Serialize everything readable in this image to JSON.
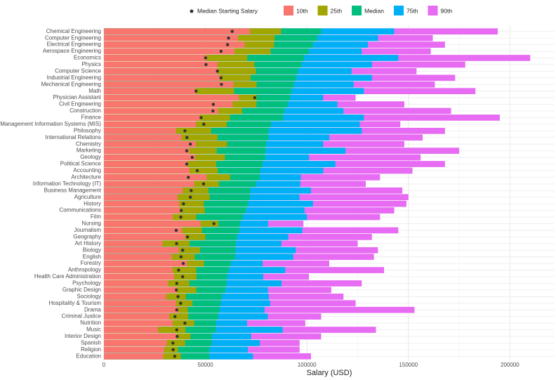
{
  "chart_data": {
    "type": "bar",
    "orientation": "horizontal",
    "xlabel": "Salary (USD)",
    "xlim": [
      0,
      222000
    ],
    "xticks": [
      0,
      50000,
      100000,
      150000,
      200000
    ],
    "xminor": [
      25000,
      75000,
      125000,
      175000
    ],
    "grid": true,
    "legend": "top",
    "categories": [
      "Chemical Engineering",
      "Computer Engineering",
      "Electrical Engineering",
      "Aerospace Engineering",
      "Economics",
      "Physics",
      "Computer Science",
      "Industrial Engineering",
      "Mechanical Engineering",
      "Math",
      "Physician Assistant",
      "Civil Engineering",
      "Construction",
      "Finance",
      "Management Information Systems (MIS)",
      "Philosophy",
      "International Relations",
      "Chemistry",
      "Marketing",
      "Geology",
      "Political Science",
      "Accounting",
      "Architecture",
      "Information Technology (IT)",
      "Business Management",
      "Agriculture",
      "History",
      "Communications",
      "Film",
      "Nursing",
      "Journalism",
      "Geography",
      "Art History",
      "Biology",
      "English",
      "Forestry",
      "Anthropology",
      "Health Care Administration",
      "Psychology",
      "Graphic Design",
      "Sociology",
      "Hospitality & Tourism",
      "Drama",
      "Criminal Justice",
      "Nutrition",
      "Music",
      "Interior Design",
      "Spanish",
      "Religion",
      "Education"
    ],
    "series": [
      {
        "name": "10th",
        "color": "#F8766D",
        "values": [
          71900,
          66100,
          69300,
          64300,
          50600,
          56000,
          56000,
          57100,
          63700,
          45200,
          66400,
          63400,
          56300,
          47200,
          45300,
          35500,
          38200,
          45300,
          42100,
          45000,
          41200,
          42200,
          50600,
          44500,
          38800,
          36300,
          37000,
          37500,
          33900,
          47600,
          38400,
          40000,
          28800,
          36900,
          33400,
          41000,
          33800,
          34600,
          31600,
          36000,
          30700,
          35500,
          36700,
          32200,
          33900,
          26700,
          35700,
          31000,
          29700,
          29300
        ]
      },
      {
        "name": "25th",
        "color": "#A3A500",
        "values": [
          87300,
          84100,
          83800,
          82100,
          70600,
          74200,
          74900,
          72300,
          75200,
          64200,
          75200,
          75100,
          68100,
          62100,
          60500,
          52800,
          56000,
          60700,
          55600,
          59600,
          55300,
          56100,
          62200,
          56700,
          51500,
          52100,
          49200,
          49700,
          45500,
          56400,
          48300,
          50000,
          42200,
          47400,
          44800,
          49300,
          45500,
          45600,
          42100,
          45500,
          40400,
          43600,
          41300,
          41600,
          44500,
          40200,
          42600,
          40000,
          36500,
          37900
        ]
      },
      {
        "name": "Median",
        "color": "#00BF7D",
        "values": [
          107000,
          105000,
          103000,
          101000,
          98600,
          97300,
          95500,
          94700,
          93600,
          92400,
          91700,
          90500,
          88900,
          88300,
          82300,
          81200,
          80900,
          79900,
          79600,
          79500,
          78200,
          77100,
          76800,
          74800,
          72100,
          71900,
          71000,
          70000,
          68500,
          67000,
          66700,
          65500,
          64900,
          64800,
          64700,
          62600,
          61500,
          60600,
          60400,
          59800,
          58200,
          57500,
          56900,
          56300,
          55300,
          55000,
          53200,
          53100,
          52000,
          52000
        ]
      },
      {
        "name": "75th",
        "color": "#00B0F6",
        "values": [
          143000,
          135000,
          130000,
          127000,
          145000,
          132000,
          122000,
          132000,
          123000,
          128000,
          108000,
          115000,
          118000,
          128000,
          126000,
          127000,
          111000,
          108000,
          119000,
          101000,
          114000,
          108000,
          97000,
          96700,
          102000,
          96300,
          103000,
          98800,
          100000,
          80900,
          97700,
          90800,
          87400,
          94500,
          93200,
          78200,
          89300,
          78500,
          87500,
          80800,
          81200,
          81900,
          79100,
          80700,
          70500,
          88000,
          72500,
          76800,
          70900,
          73400
        ]
      },
      {
        "name": "90th",
        "color": "#E76BF3",
        "values": [
          194000,
          162000,
          168000,
          161000,
          210000,
          178000,
          154000,
          173000,
          163000,
          183000,
          124000,
          148000,
          171000,
          195000,
          146000,
          168000,
          157000,
          148000,
          175000,
          156000,
          168000,
          152000,
          136000,
          129000,
          147000,
          150000,
          149000,
          143000,
          136000,
          98300,
          145000,
          132000,
          125000,
          135000,
          133000,
          111000,
          138000,
          101000,
          127000,
          112000,
          118000,
          124000,
          153000,
          107000,
          99200,
          134000,
          107000,
          96400,
          96400,
          102000
        ]
      },
      {
        "name": "Median Starting Salary",
        "type": "point",
        "color": "#333333",
        "values": [
          63200,
          61400,
          60900,
          57700,
          50100,
          50300,
          55900,
          57700,
          57900,
          45400,
          74300,
          53900,
          53700,
          47900,
          49200,
          39900,
          40900,
          42600,
          40800,
          43500,
          40800,
          46000,
          41600,
          49100,
          43000,
          42600,
          39200,
          38100,
          37900,
          54200,
          35600,
          41200,
          35800,
          38800,
          38000,
          39100,
          36800,
          38800,
          35900,
          35700,
          36500,
          37800,
          35900,
          35000,
          39900,
          35900,
          36100,
          34000,
          34100,
          34900
        ]
      }
    ]
  }
}
